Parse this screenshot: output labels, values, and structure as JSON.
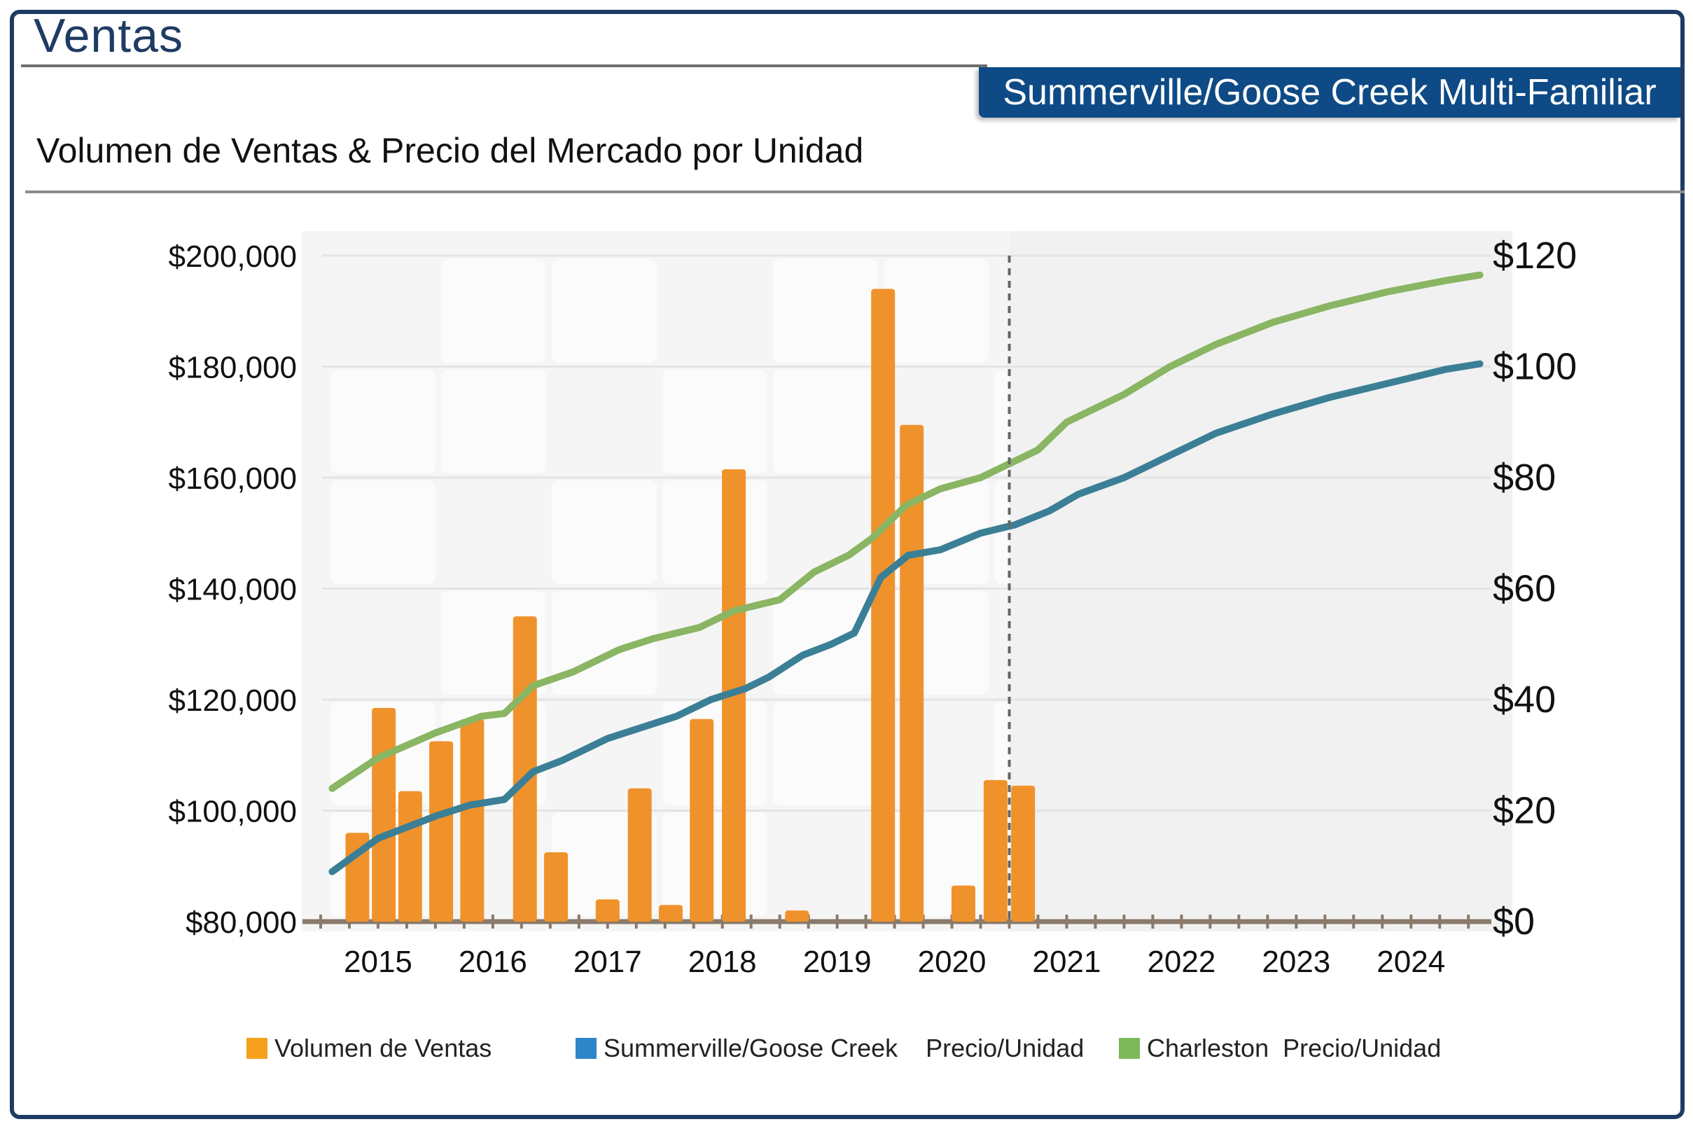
{
  "header": {
    "title": "Ventas",
    "badge": "Summerville/Goose Creek Multi-Familiar",
    "subtitle": "Volumen de Ventas & Precio del Mercado por Unidad"
  },
  "colors": {
    "primary": "#1f3b63",
    "badge": "#0e4a86",
    "bars": "#f0922b",
    "summerville": "#3b7f96",
    "charleston": "#8ab563"
  },
  "legend": [
    {
      "label": "Volumen de Ventas",
      "color": "#f5a11c"
    },
    {
      "label": "Summerville/Goose Creek    Precio/Unidad",
      "color": "#2e86c8"
    },
    {
      "label": "Charleston  Precio/Unidad",
      "color": "#7db95b"
    }
  ],
  "chart_data": {
    "type": "bar+line",
    "title": "Volumen de Ventas & Precio del Mercado por Unidad",
    "x_range": [
      2014.5,
      2024.7
    ],
    "forecast_start": 2020.5,
    "categories": [
      "2015",
      "2016",
      "2017",
      "2018",
      "2019",
      "2020",
      "2021",
      "2022",
      "2023",
      "2024"
    ],
    "left_axis": {
      "range": [
        80000,
        200000
      ],
      "ticks": [
        "$80,000",
        "$100,000",
        "$120,000",
        "$140,000",
        "$160,000",
        "$180,000",
        "$200,000"
      ],
      "tick_values": [
        80000,
        100000,
        120000,
        140000,
        160000,
        180000,
        200000
      ]
    },
    "right_axis": {
      "range": [
        0,
        120
      ],
      "ticks": [
        "$0",
        "$20",
        "$40",
        "$60",
        "$80",
        "$100",
        "$120"
      ],
      "tick_values": [
        0,
        20,
        40,
        60,
        80,
        100,
        120
      ]
    },
    "series": [
      {
        "name": "Volumen de Ventas",
        "type": "bar",
        "axis": "left",
        "points": [
          [
            2014.82,
            96000
          ],
          [
            2015.05,
            118500
          ],
          [
            2015.28,
            103500
          ],
          [
            2015.55,
            112500
          ],
          [
            2015.82,
            116500
          ],
          [
            2016.28,
            135000
          ],
          [
            2016.55,
            92500
          ],
          [
            2017.0,
            84000
          ],
          [
            2017.28,
            104000
          ],
          [
            2017.55,
            83000
          ],
          [
            2017.82,
            116500
          ],
          [
            2018.1,
            161500
          ],
          [
            2018.65,
            82000
          ],
          [
            2019.4,
            194000
          ],
          [
            2019.65,
            169500
          ],
          [
            2020.1,
            86500
          ],
          [
            2020.38,
            105500
          ],
          [
            2020.62,
            104500
          ]
        ]
      },
      {
        "name": "Summerville/Goose Creek Precio/Unidad",
        "type": "line",
        "axis": "right",
        "points": [
          [
            2014.6,
            9
          ],
          [
            2015.0,
            15
          ],
          [
            2015.5,
            19
          ],
          [
            2015.8,
            21
          ],
          [
            2016.1,
            22
          ],
          [
            2016.35,
            27
          ],
          [
            2016.6,
            29
          ],
          [
            2017.0,
            33
          ],
          [
            2017.3,
            35
          ],
          [
            2017.6,
            37
          ],
          [
            2017.9,
            40
          ],
          [
            2018.2,
            42
          ],
          [
            2018.4,
            44
          ],
          [
            2018.7,
            48
          ],
          [
            2018.95,
            50
          ],
          [
            2019.15,
            52
          ],
          [
            2019.38,
            62
          ],
          [
            2019.62,
            66
          ],
          [
            2019.9,
            67
          ],
          [
            2020.25,
            70
          ],
          [
            2020.55,
            71.5
          ],
          [
            2020.85,
            74
          ],
          [
            2021.1,
            77
          ],
          [
            2021.5,
            80
          ],
          [
            2021.9,
            84
          ],
          [
            2022.3,
            88
          ],
          [
            2022.8,
            91.5
          ],
          [
            2023.3,
            94.5
          ],
          [
            2023.8,
            97
          ],
          [
            2024.3,
            99.5
          ],
          [
            2024.6,
            100.5
          ]
        ]
      },
      {
        "name": "Charleston Precio/Unidad",
        "type": "line",
        "axis": "right",
        "points": [
          [
            2014.6,
            24
          ],
          [
            2015.0,
            29.5
          ],
          [
            2015.5,
            34
          ],
          [
            2015.9,
            37
          ],
          [
            2016.1,
            37.5
          ],
          [
            2016.35,
            42.5
          ],
          [
            2016.7,
            45
          ],
          [
            2017.1,
            49
          ],
          [
            2017.4,
            51
          ],
          [
            2017.8,
            53
          ],
          [
            2018.1,
            56
          ],
          [
            2018.5,
            58
          ],
          [
            2018.8,
            63
          ],
          [
            2019.1,
            66
          ],
          [
            2019.3,
            69
          ],
          [
            2019.6,
            75
          ],
          [
            2019.9,
            78
          ],
          [
            2020.25,
            80
          ],
          [
            2020.5,
            82.5
          ],
          [
            2020.75,
            85
          ],
          [
            2021.0,
            90
          ],
          [
            2021.5,
            95
          ],
          [
            2021.9,
            100
          ],
          [
            2022.3,
            104
          ],
          [
            2022.8,
            108
          ],
          [
            2023.3,
            111
          ],
          [
            2023.8,
            113.5
          ],
          [
            2024.3,
            115.5
          ],
          [
            2024.6,
            116.5
          ]
        ]
      }
    ]
  }
}
